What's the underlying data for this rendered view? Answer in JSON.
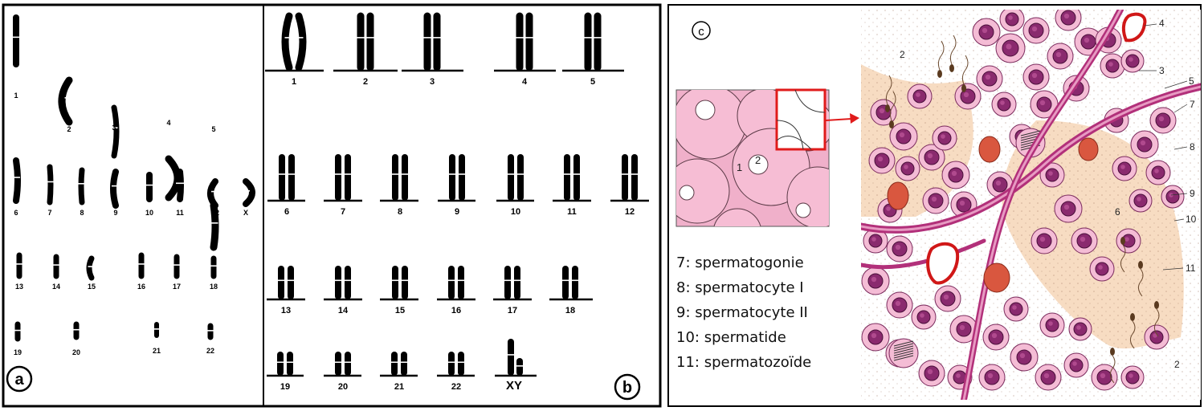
{
  "panels": {
    "a": {
      "badge": "a",
      "labels": [
        "1",
        "2",
        "3",
        "4",
        "5",
        "6",
        "7",
        "8",
        "9",
        "10",
        "11",
        "12",
        "X",
        "13",
        "14",
        "15",
        "16",
        "17",
        "18",
        "19",
        "20",
        "21",
        "22"
      ]
    },
    "b": {
      "badge": "b",
      "labels": [
        "1",
        "2",
        "3",
        "4",
        "5",
        "6",
        "7",
        "8",
        "9",
        "10",
        "11",
        "12",
        "13",
        "14",
        "15",
        "16",
        "17",
        "18",
        "19",
        "20",
        "21",
        "22",
        "XY"
      ]
    },
    "c": {
      "badge": "c",
      "inset_labels": [
        "1",
        "2"
      ],
      "numbers": [
        "2",
        "4",
        "3",
        "5",
        "7",
        "8",
        "9",
        "6",
        "10",
        "11",
        "2"
      ],
      "legend": [
        "7: spermatogonie",
        "8: spermatocyte I",
        "9: spermatocyte II",
        "10: spermatide",
        "11: spermatozoïde"
      ]
    }
  },
  "colors": {
    "tissue_pink": "#f2a9c8",
    "membrane_purple": "#b2307a",
    "nucleus_purple": "#7b1f63",
    "lumen_beige": "#f7dcc2",
    "highlight_red": "#e01b1b"
  }
}
